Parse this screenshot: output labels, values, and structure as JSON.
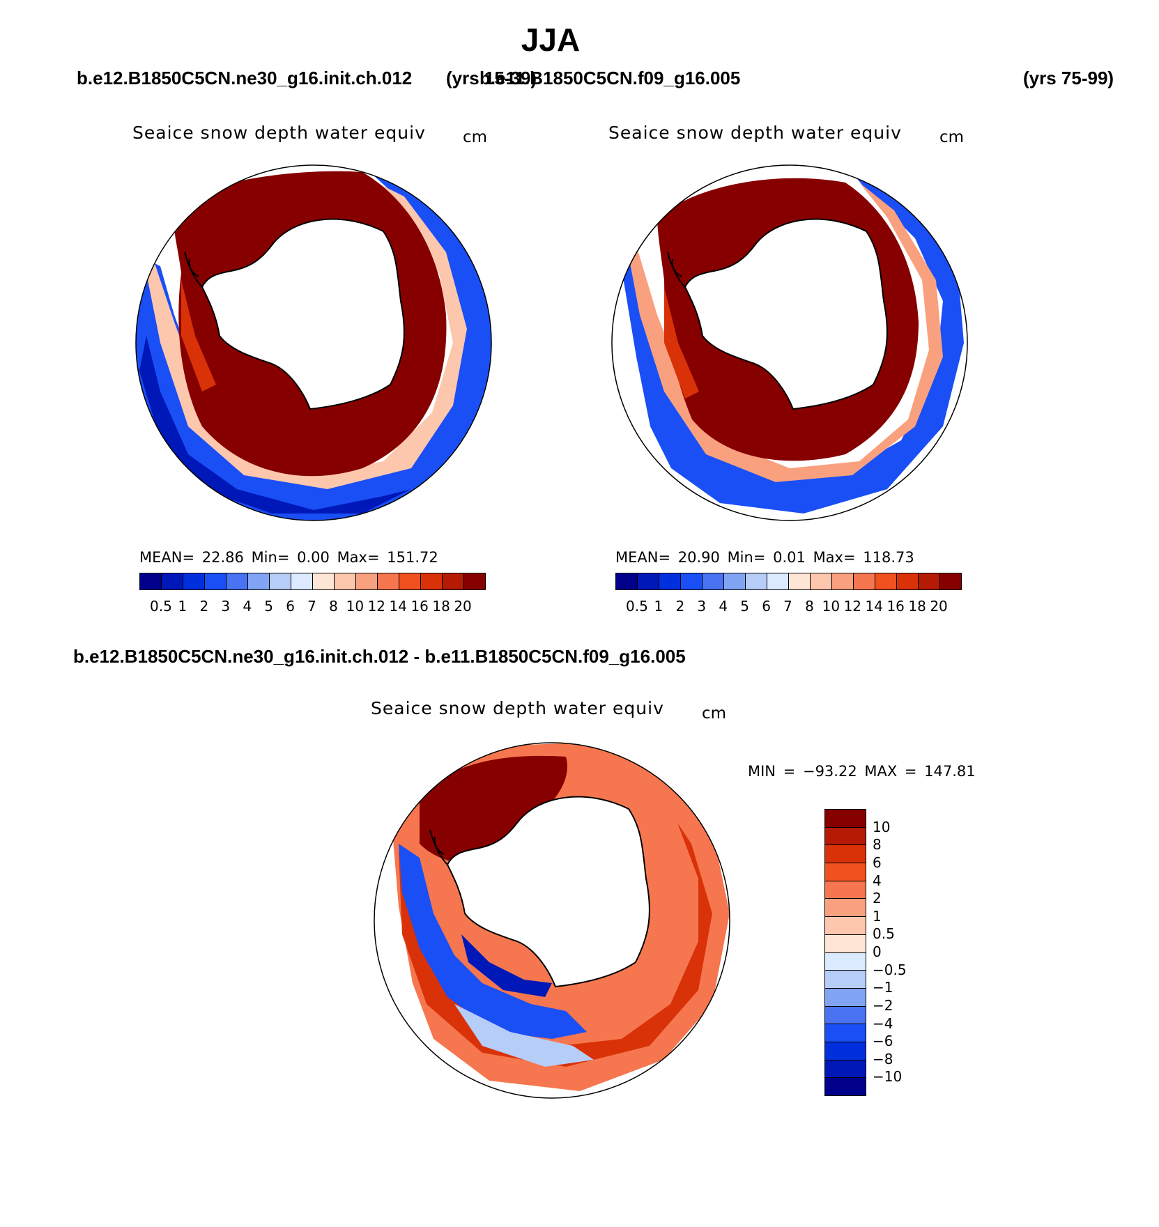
{
  "title": "JJA",
  "header": {
    "case_left": "b.e12.B1850C5CN.ne30_g16.init.ch.012",
    "years_left": "(yrs 15-39)",
    "case_right": "b.e11.B1850C5CN.f09_g16.005",
    "years_right": "(yrs 75-99)"
  },
  "panels": {
    "left": {
      "subtitle": "Seaice snow depth water equiv",
      "units": "cm",
      "mean_label": "MEAN=",
      "mean": "22.86",
      "min_label": "Min=",
      "min": "0.00",
      "max_label": "Max=",
      "max": "151.72"
    },
    "right": {
      "subtitle": "Seaice snow depth water equiv",
      "units": "cm",
      "mean_label": "MEAN=",
      "mean": "20.90",
      "min_label": "Min=",
      "min": "0.01",
      "max_label": "Max=",
      "max": "118.73"
    },
    "diff": {
      "title": "b.e12.B1850C5CN.ne30_g16.init.ch.012 - b.e11.B1850C5CN.f09_g16.005",
      "subtitle": "Seaice snow depth water equiv",
      "units": "cm",
      "minmax": "MIN = −93.22 MAX = 147.81"
    }
  },
  "colorbars": {
    "main_colors": [
      "#00008b",
      "#0018b8",
      "#0030dd",
      "#1a4ff6",
      "#4a73f2",
      "#82a4f5",
      "#b6cdf8",
      "#dceaff",
      "#fde6d6",
      "#fcc7ad",
      "#f9a17f",
      "#f6774f",
      "#f0511f",
      "#d93208",
      "#b51a05",
      "#860000"
    ],
    "main_ticks": [
      "0.5",
      "1",
      "2",
      "3",
      "4",
      "5",
      "6",
      "7",
      "8",
      "10",
      "12",
      "14",
      "16",
      "18",
      "20"
    ],
    "diff_colors": [
      "#860000",
      "#b51a05",
      "#d93208",
      "#f0511f",
      "#f6774f",
      "#f9a17f",
      "#fcc7ad",
      "#fde6d6",
      "#dceaff",
      "#b6cdf8",
      "#82a4f5",
      "#4a73f2",
      "#1a4ff6",
      "#0030dd",
      "#0018b8",
      "#00008b"
    ],
    "diff_ticks": [
      "10",
      "8",
      "6",
      "4",
      "2",
      "1",
      "0.5",
      "0",
      "−0.5",
      "−1",
      "−2",
      "−4",
      "−6",
      "−8",
      "−10"
    ]
  }
}
